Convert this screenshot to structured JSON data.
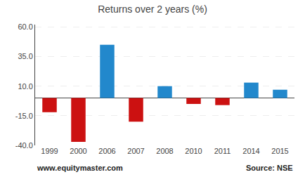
{
  "chart_data": {
    "type": "bar",
    "title": "Returns over 2 years (%)",
    "categories": [
      "1999",
      "2000",
      "2006",
      "2007",
      "2008",
      "2010",
      "2011",
      "2014",
      "2015"
    ],
    "values": [
      -12,
      -37,
      45,
      -20,
      10,
      -5,
      -6,
      13,
      7
    ],
    "colors": [
      "#cc1111",
      "#cc1111",
      "#2288cc",
      "#cc1111",
      "#2288cc",
      "#cc1111",
      "#cc1111",
      "#2288cc",
      "#2288cc"
    ],
    "ylim": [
      -40,
      62
    ],
    "yticks": [
      {
        "value": -40,
        "label": "-40.0"
      },
      {
        "value": -15,
        "label": "-15.0"
      },
      {
        "value": 10,
        "label": "10.0"
      },
      {
        "value": 35,
        "label": "35.0"
      },
      {
        "value": 60,
        "label": "60.0"
      }
    ],
    "grid": true,
    "annotations": [
      "www.equitymaster.com",
      "Source: NSE"
    ]
  }
}
